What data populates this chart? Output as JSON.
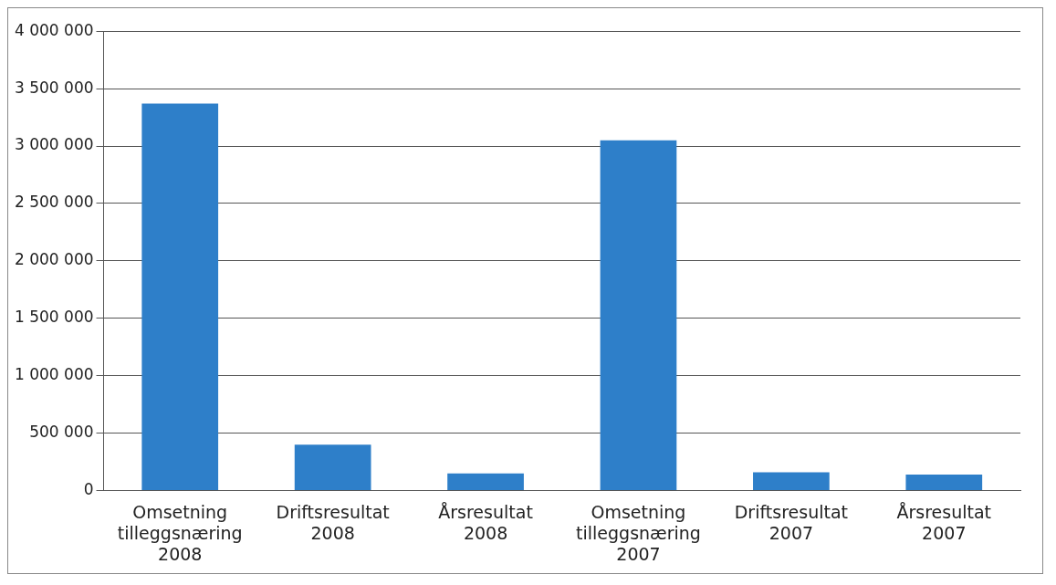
{
  "chart_data": {
    "type": "bar",
    "categories": [
      "Omsetning\ntilleggsnæring\n2008",
      "Driftsresultat\n2008",
      "Årsresultat\n2008",
      "Omsetning\ntilleggsnæring\n2007",
      "Driftsresultat\n2007",
      "Årsresultat\n2007"
    ],
    "values": [
      3370000,
      400000,
      150000,
      3050000,
      160000,
      140000
    ],
    "color": "#2e7fc9",
    "ylim": [
      0,
      4000000
    ],
    "yticks": [
      {
        "value": 0,
        "label": "0"
      },
      {
        "value": 500000,
        "label": "500 000"
      },
      {
        "value": 1000000,
        "label": "1 000 000"
      },
      {
        "value": 1500000,
        "label": "1 500 000"
      },
      {
        "value": 2000000,
        "label": "2 000 000"
      },
      {
        "value": 2500000,
        "label": "2 500 000"
      },
      {
        "value": 3000000,
        "label": "3 000 000"
      },
      {
        "value": 3500000,
        "label": "3 500 000"
      },
      {
        "value": 4000000,
        "label": "4 000 000"
      }
    ],
    "grid": "y"
  }
}
